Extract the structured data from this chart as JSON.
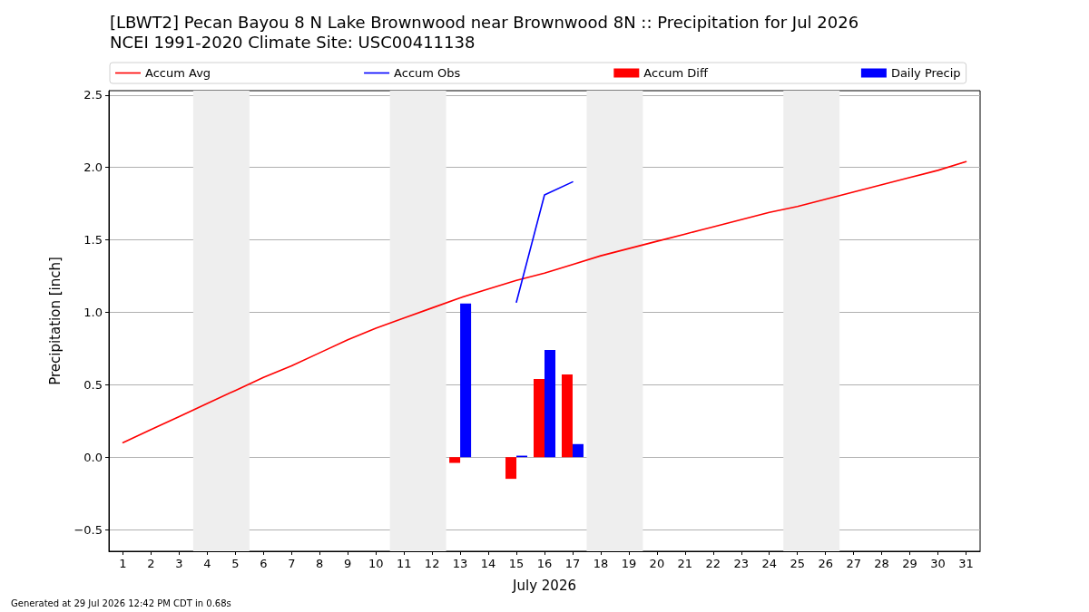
{
  "chart_data": {
    "type": "line",
    "title": "[LBWT2] Pecan Bayou 8 N Lake Brownwood near Brownwood 8N :: Precipitation for Jul 2026",
    "subtitle": "NCEI 1991-2020 Climate Site: USC00411138",
    "xlabel": "July 2026",
    "ylabel": "Precipitation [inch]",
    "x": [
      1,
      2,
      3,
      4,
      5,
      6,
      7,
      8,
      9,
      10,
      11,
      12,
      13,
      14,
      15,
      16,
      17,
      18,
      19,
      20,
      21,
      22,
      23,
      24,
      25,
      26,
      27,
      28,
      29,
      30,
      31
    ],
    "series": [
      {
        "name": "Accum Avg",
        "color": "#ff0000",
        "values": [
          0.1,
          0.19,
          0.28,
          0.37,
          0.46,
          0.55,
          0.63,
          0.72,
          0.81,
          0.89,
          0.96,
          1.03,
          1.1,
          1.16,
          1.22,
          1.27,
          1.33,
          1.39,
          1.44,
          1.49,
          1.54,
          1.59,
          1.64,
          1.69,
          1.73,
          1.78,
          1.83,
          1.88,
          1.93,
          1.98,
          2.04
        ]
      },
      {
        "name": "Accum Obs",
        "color": "#0000ff",
        "values": [
          null,
          null,
          null,
          null,
          null,
          null,
          null,
          null,
          null,
          null,
          null,
          null,
          null,
          null,
          1.07,
          1.81,
          1.9,
          null,
          null,
          null,
          null,
          null,
          null,
          null,
          null,
          null,
          null,
          null,
          null,
          null,
          null
        ]
      },
      {
        "name": "Accum Diff",
        "type": "bar",
        "color": "#ff0000",
        "values": [
          null,
          null,
          null,
          null,
          null,
          null,
          null,
          null,
          null,
          null,
          null,
          null,
          -0.04,
          null,
          -0.15,
          0.54,
          0.57,
          null,
          null,
          null,
          null,
          null,
          null,
          null,
          null,
          null,
          null,
          null,
          null,
          null,
          null
        ]
      },
      {
        "name": "Daily Precip",
        "type": "bar",
        "color": "#0000ff",
        "values": [
          null,
          null,
          null,
          null,
          null,
          null,
          null,
          null,
          null,
          null,
          null,
          null,
          1.06,
          null,
          0.01,
          0.74,
          0.09,
          null,
          null,
          null,
          null,
          null,
          null,
          null,
          null,
          null,
          null,
          null,
          null,
          null,
          null
        ]
      }
    ],
    "xlim": [
      0.5,
      31.5
    ],
    "xticks": [
      1,
      2,
      3,
      4,
      5,
      6,
      7,
      8,
      9,
      10,
      11,
      12,
      13,
      14,
      15,
      16,
      17,
      18,
      19,
      20,
      21,
      22,
      23,
      24,
      25,
      26,
      27,
      28,
      29,
      30,
      31
    ],
    "ylim": [
      -0.65,
      2.53
    ],
    "yticks": [
      {
        "value": -0.5,
        "label": "−0.5"
      },
      {
        "value": 0,
        "label": "0.0"
      },
      0.5,
      {
        "value": 1,
        "label": "1.0"
      },
      1.5,
      {
        "value": 2,
        "label": "2.0"
      },
      2.5
    ],
    "bands": [
      {
        "axis": "x",
        "from": 3.5,
        "to": 5.5,
        "color": "#eeeeee"
      },
      {
        "axis": "x",
        "from": 10.5,
        "to": 12.5,
        "color": "#eeeeee"
      },
      {
        "axis": "x",
        "from": 17.5,
        "to": 19.5,
        "color": "#eeeeee"
      },
      {
        "axis": "x",
        "from": 24.5,
        "to": 26.5,
        "color": "#eeeeee"
      }
    ],
    "grid": "y",
    "legend": "top",
    "annotations": [
      "Generated at 29 Jul 2026 12:42 PM CDT in 0.68s"
    ]
  }
}
